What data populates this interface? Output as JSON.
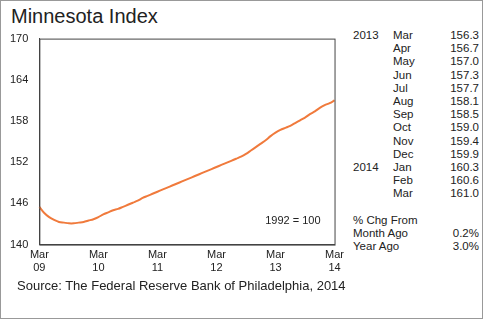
{
  "chart_data": {
    "type": "line",
    "title": "Minnesota Index",
    "categories": [
      "Mar 09",
      null,
      null,
      null,
      null,
      null,
      null,
      null,
      null,
      null,
      null,
      null,
      "Mar 10",
      null,
      null,
      null,
      null,
      null,
      null,
      null,
      null,
      null,
      null,
      null,
      "Mar 11",
      null,
      null,
      null,
      null,
      null,
      null,
      null,
      null,
      null,
      null,
      null,
      "Mar 12",
      null,
      null,
      null,
      null,
      null,
      null,
      null,
      null,
      null,
      null,
      null,
      "Mar 13",
      null,
      null,
      null,
      null,
      null,
      null,
      null,
      null,
      null,
      null,
      null,
      "Mar 14"
    ],
    "values": [
      145.5,
      144.6,
      144.0,
      143.6,
      143.3,
      143.2,
      143.1,
      143.1,
      143.2,
      143.3,
      143.5,
      143.7,
      144.0,
      144.4,
      144.7,
      145.0,
      145.2,
      145.5,
      145.8,
      146.1,
      146.4,
      146.8,
      147.1,
      147.4,
      147.7,
      148.0,
      148.3,
      148.6,
      148.9,
      149.2,
      149.5,
      149.8,
      150.1,
      150.4,
      150.7,
      151.0,
      151.3,
      151.6,
      151.9,
      152.2,
      152.5,
      152.8,
      153.2,
      153.7,
      154.2,
      154.7,
      155.2,
      155.8,
      156.3,
      156.7,
      157.0,
      157.3,
      157.7,
      158.1,
      158.5,
      159.0,
      159.4,
      159.9,
      160.3,
      160.6,
      161.0
    ],
    "color": "#f07a3c",
    "ylim": [
      140,
      170
    ],
    "yticks": [
      140,
      146,
      152,
      158,
      164,
      170
    ],
    "grid": false,
    "annotations": [
      "1992 = 100"
    ],
    "side_table": {
      "rows": [
        {
          "year": "2013",
          "month": "Mar",
          "value": "156.3"
        },
        {
          "month": "Apr",
          "value": "156.7"
        },
        {
          "month": "May",
          "value": "157.0"
        },
        {
          "month": "Jun",
          "value": "157.3"
        },
        {
          "month": "Jul",
          "value": "157.7"
        },
        {
          "month": "Aug",
          "value": "158.1"
        },
        {
          "month": "Sep",
          "value": "158.5"
        },
        {
          "month": "Oct",
          "value": "159.0"
        },
        {
          "month": "Nov",
          "value": "159.4"
        },
        {
          "month": "Dec",
          "value": "159.9"
        },
        {
          "year": "2014",
          "month": "Jan",
          "value": "160.3"
        },
        {
          "month": "Feb",
          "value": "160.6"
        },
        {
          "month": "Mar",
          "value": "161.0"
        }
      ],
      "change_title": "% Chg From",
      "change_rows": [
        {
          "label": "Month Ago",
          "value": "0.2%"
        },
        {
          "label": "Year Ago",
          "value": "3.0%"
        }
      ]
    },
    "source": "Source: The Federal Reserve Bank of Philadelphia, 2014"
  }
}
